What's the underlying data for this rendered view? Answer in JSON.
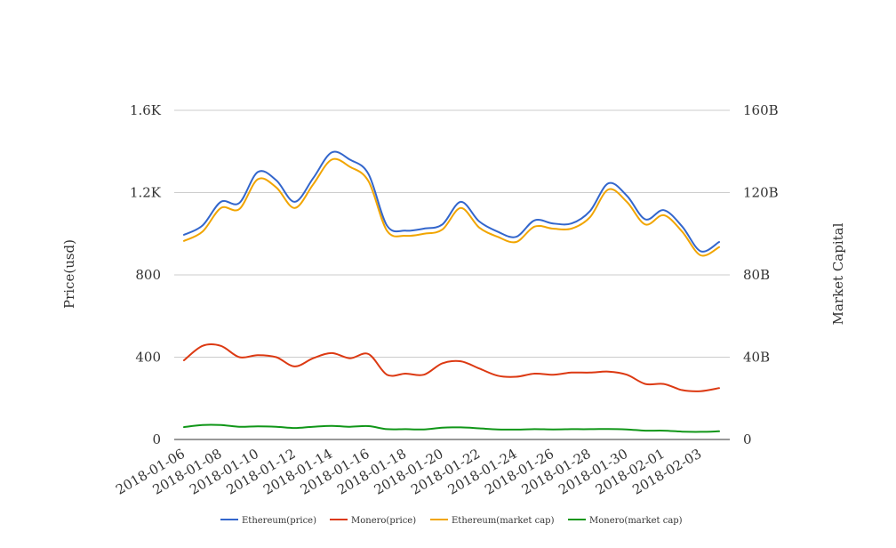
{
  "chart_data": {
    "type": "line",
    "x": [
      "2018-01-06",
      "2018-01-07",
      "2018-01-08",
      "2018-01-09",
      "2018-01-10",
      "2018-01-11",
      "2018-01-12",
      "2018-01-13",
      "2018-01-14",
      "2018-01-15",
      "2018-01-16",
      "2018-01-17",
      "2018-01-18",
      "2018-01-19",
      "2018-01-20",
      "2018-01-21",
      "2018-01-22",
      "2018-01-23",
      "2018-01-24",
      "2018-01-25",
      "2018-01-26",
      "2018-01-27",
      "2018-01-28",
      "2018-01-29",
      "2018-01-30",
      "2018-01-31",
      "2018-02-01",
      "2018-02-02",
      "2018-02-03",
      "2018-02-04"
    ],
    "x_tick_labels": [
      "2018-01-06",
      "2018-01-08",
      "2018-01-10",
      "2018-01-12",
      "2018-01-14",
      "2018-01-16",
      "2018-01-18",
      "2018-01-20",
      "2018-01-22",
      "2018-01-24",
      "2018-01-26",
      "2018-01-28",
      "2018-01-30",
      "2018-02-01",
      "2018-02-03"
    ],
    "y_left": {
      "label": "Price(usd)",
      "range": [
        0,
        1600
      ],
      "ticks": [
        0,
        400,
        800,
        1200,
        1600
      ],
      "tick_labels": [
        "0",
        "400",
        "800",
        "1.2K",
        "1.6K"
      ]
    },
    "y_right": {
      "label": "Market Capital",
      "range": [
        0,
        160000000000
      ],
      "ticks": [
        0,
        40000000000,
        80000000000,
        120000000000,
        160000000000
      ],
      "tick_labels": [
        "0",
        "40B",
        "80B",
        "120B",
        "160B"
      ]
    },
    "grid": true,
    "legend_position": "bottom",
    "series": [
      {
        "name": "Ethereum(price)",
        "axis": "left",
        "color": "#3366cc",
        "values": [
          995,
          1040,
          1155,
          1150,
          1300,
          1260,
          1155,
          1270,
          1395,
          1360,
          1290,
          1040,
          1015,
          1025,
          1045,
          1155,
          1060,
          1010,
          985,
          1065,
          1050,
          1050,
          1110,
          1245,
          1185,
          1070,
          1115,
          1035,
          915,
          960
        ]
      },
      {
        "name": "Monero(price)",
        "axis": "left",
        "color": "#dc3912",
        "values": [
          385,
          455,
          455,
          400,
          410,
          400,
          355,
          395,
          420,
          395,
          415,
          315,
          320,
          315,
          370,
          380,
          345,
          310,
          305,
          320,
          315,
          325,
          325,
          330,
          315,
          270,
          270,
          240,
          235,
          250
        ]
      },
      {
        "name": "Ethereum(market cap)",
        "axis": "right",
        "color": "#f1a500",
        "values": [
          96500000000,
          101000000000,
          112500000000,
          112000000000,
          126500000000,
          122500000000,
          112500000000,
          124000000000,
          136000000000,
          132500000000,
          125500000000,
          101500000000,
          99000000000,
          100000000000,
          102000000000,
          112500000000,
          103000000000,
          98500000000,
          96000000000,
          103500000000,
          102500000000,
          102500000000,
          108000000000,
          121500000000,
          115500000000,
          104500000000,
          109000000000,
          101000000000,
          89500000000,
          93500000000
        ]
      },
      {
        "name": "Monero(market cap)",
        "axis": "right",
        "color": "#109618",
        "values": [
          6000000000,
          7000000000,
          7000000000,
          6200000000,
          6400000000,
          6200000000,
          5600000000,
          6200000000,
          6600000000,
          6200000000,
          6500000000,
          5000000000,
          5000000000,
          4900000000,
          5700000000,
          5900000000,
          5400000000,
          4900000000,
          4800000000,
          5000000000,
          4900000000,
          5000000000,
          5000000000,
          5100000000,
          4900000000,
          4300000000,
          4300000000,
          3800000000,
          3700000000,
          4000000000
        ]
      }
    ]
  }
}
